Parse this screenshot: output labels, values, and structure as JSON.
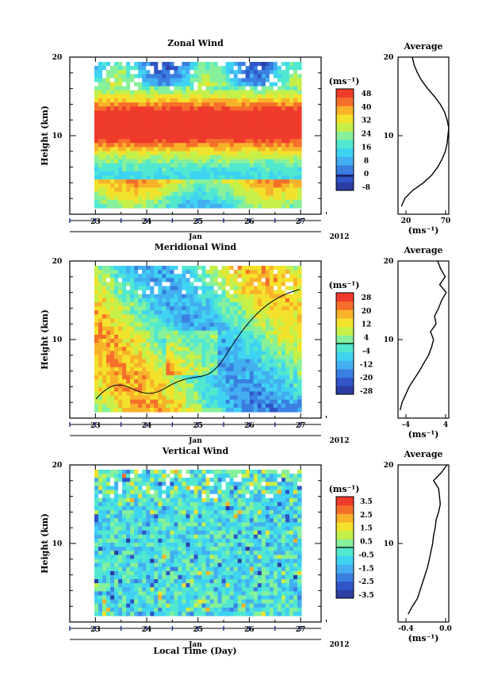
{
  "figure": {
    "time_axis_label": "Local Time (Day)",
    "month_label": "Jan",
    "year_label": "2012",
    "y_label": "Height (km)",
    "unit_label": "(ms⁻¹)",
    "average_title": "Average"
  },
  "palette": [
    "#2b3da0",
    "#2f55c8",
    "#3a7fe0",
    "#43aef0",
    "#3fd3f2",
    "#52e8d0",
    "#86f09a",
    "#c5f04a",
    "#f3e22c",
    "#f8b22a",
    "#f56f2a",
    "#ef3b2c"
  ],
  "chart_data": [
    {
      "type": "heatmap",
      "title": "Zonal Wind",
      "ylabel": "Height (km)",
      "xlabel": "Jan",
      "ylim": [
        0,
        20
      ],
      "yticks": [
        "20",
        "10"
      ],
      "xlim": [
        22.5,
        27.4
      ],
      "xticks": [
        "23",
        "24",
        "25",
        "26",
        "27"
      ],
      "colorbar": {
        "unit": "(ms⁻¹)",
        "ticks": [
          "48",
          "40",
          "32",
          "24",
          "16",
          "8",
          "0",
          "-8"
        ],
        "range": [
          -8,
          48
        ]
      },
      "average": {
        "title": "Average",
        "xlabel": "(ms⁻¹)",
        "xticks": [
          "20",
          "70"
        ],
        "xlim": [
          10,
          70
        ],
        "height": [
          1,
          2,
          3,
          4,
          5,
          6,
          7,
          8,
          9,
          10,
          11,
          12,
          13,
          14,
          15,
          16,
          17,
          18,
          19,
          20
        ],
        "value": [
          14,
          18,
          27,
          40,
          50,
          57,
          62,
          66,
          68,
          69,
          70,
          68,
          65,
          60,
          53,
          45,
          38,
          33,
          29,
          27
        ]
      }
    },
    {
      "type": "heatmap",
      "title": "Meridional Wind",
      "ylabel": "Height (km)",
      "xlabel": "Jan",
      "ylim": [
        0,
        20
      ],
      "yticks": [
        "20",
        "10"
      ],
      "xlim": [
        22.5,
        27.4
      ],
      "xticks": [
        "23",
        "24",
        "25",
        "26",
        "27"
      ],
      "colorbar": {
        "unit": "(ms⁻¹)",
        "ticks": [
          "28",
          "20",
          "12",
          "4",
          "-4",
          "-12",
          "-20",
          "-28"
        ],
        "range": [
          -28,
          28
        ]
      },
      "average": {
        "title": "Average",
        "xlabel": "(ms⁻¹)",
        "xticks": [
          "-4",
          "4"
        ],
        "xlim": [
          -5,
          5
        ],
        "height": [
          1,
          2,
          3,
          4,
          5,
          6,
          7,
          8,
          9,
          10,
          11,
          12,
          13,
          14,
          15,
          16,
          17,
          18,
          19,
          20
        ],
        "value": [
          -4.6,
          -4.2,
          -3.5,
          -2.8,
          -1.8,
          -0.8,
          0.1,
          1.0,
          1.6,
          2.0,
          1.4,
          2.5,
          2.2,
          3.0,
          3.6,
          4.5,
          3.2,
          4.3,
          3.4,
          2.8
        ]
      }
    },
    {
      "type": "heatmap",
      "title": "Vertical Wind",
      "ylabel": "Height (km)",
      "xlabel": "Jan",
      "ylim": [
        0,
        20
      ],
      "yticks": [
        "20",
        "10"
      ],
      "xlim": [
        22.5,
        27.4
      ],
      "xticks": [
        "23",
        "24",
        "25",
        "26",
        "27"
      ],
      "colorbar": {
        "unit": "(ms⁻¹)",
        "ticks": [
          "3.5",
          "2.5",
          "1.5",
          "0.5",
          "-0.5",
          "-1.5",
          "-2.5",
          "-3.5"
        ],
        "range": [
          -3.5,
          3.5
        ]
      },
      "average": {
        "title": "Average",
        "xlabel": "(ms⁻¹)",
        "xticks": [
          "-0.4",
          "0.0"
        ],
        "xlim": [
          -0.5,
          0.1
        ],
        "height": [
          1,
          2,
          3,
          4,
          5,
          6,
          7,
          8,
          9,
          10,
          11,
          12,
          13,
          14,
          15,
          16,
          17,
          18,
          19,
          20
        ],
        "value": [
          -0.38,
          -0.33,
          -0.27,
          -0.24,
          -0.21,
          -0.18,
          -0.15,
          -0.13,
          -0.11,
          -0.09,
          -0.08,
          -0.06,
          -0.05,
          -0.02,
          0.0,
          -0.01,
          -0.02,
          -0.08,
          0.01,
          0.08
        ]
      }
    }
  ]
}
